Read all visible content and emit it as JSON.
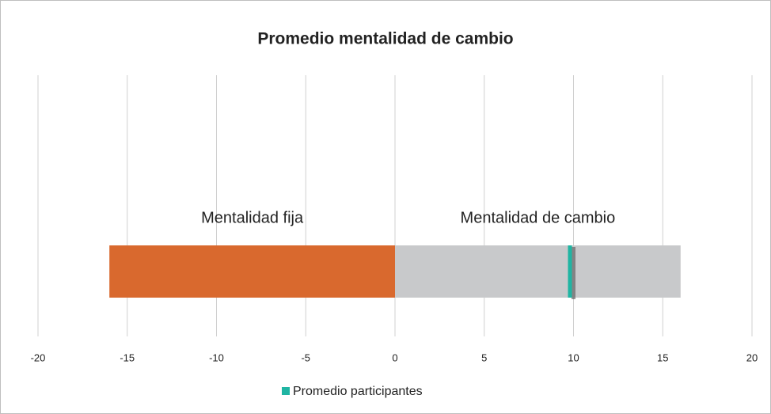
{
  "chart_data": {
    "type": "bar",
    "title": "Promedio mentalidad de cambio",
    "segments": [
      {
        "name": "Mentalidad fija",
        "value": -16,
        "color": "#d9692e"
      },
      {
        "name": "Mentalidad de cambio",
        "value": 16,
        "color": "#c8c9cb"
      }
    ],
    "series": [
      {
        "name": "Promedio participantes",
        "color": "#1fb5a3",
        "values": [
          9.8
        ]
      }
    ],
    "xlim": [
      -20,
      20
    ],
    "xticks": [
      -20,
      -15,
      -10,
      -5,
      0,
      5,
      10,
      15,
      20
    ],
    "grid": true,
    "legend": "bottom"
  }
}
